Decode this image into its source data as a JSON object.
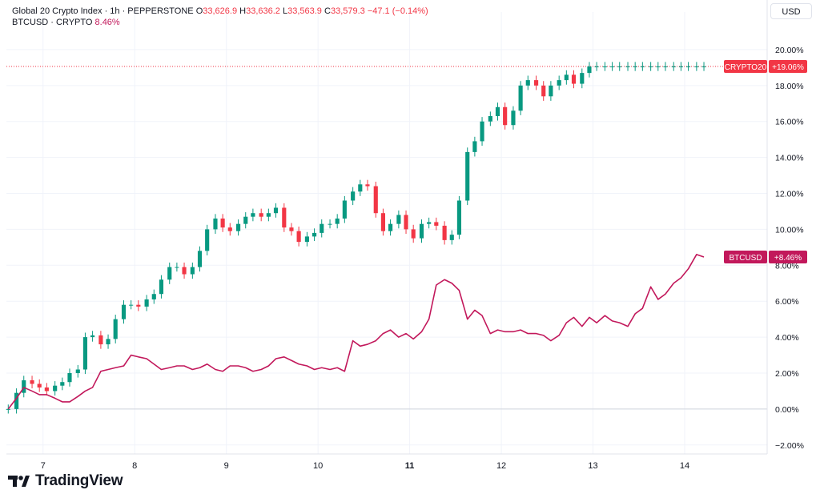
{
  "legend": {
    "line1": {
      "symbol": "Global 20 Crypto Index · 1h · PEPPERSTONE",
      "o_label": "O",
      "o": "33,626.9",
      "h_label": "H",
      "h": "33,636.2",
      "l_label": "L",
      "l": "33,563.9",
      "c_label": "C",
      "c": "33,579.3",
      "change": "−47.1 (−0.14%)"
    },
    "line2": {
      "symbol": "BTCUSD · CRYPTO",
      "value": "8.46%"
    }
  },
  "currency_button": "USD",
  "branding": "TradingView",
  "colors": {
    "up": "#089981",
    "down": "#f23645",
    "btc_line": "#c2185b",
    "grid": "#f0f3fa",
    "zero_line": "#d1d4dc",
    "axis_text": "#131722"
  },
  "chart_data": {
    "type": "line",
    "title": "",
    "y_unit": "%",
    "ylim": [
      -2.5,
      21.2
    ],
    "y_ticks": [
      "−2.00%",
      "0.00%",
      "2.00%",
      "4.00%",
      "6.00%",
      "8.00%",
      "10.00%",
      "12.00%",
      "14.00%",
      "16.00%",
      "18.00%",
      "20.00%"
    ],
    "y_tick_values": [
      -2,
      0,
      2,
      4,
      6,
      8,
      10,
      12,
      14,
      16,
      18,
      20
    ],
    "x_ticks": [
      "7",
      "8",
      "9",
      "10",
      "11",
      "12",
      "13",
      "14"
    ],
    "x_tick_values": [
      7,
      8,
      9,
      10,
      11,
      12,
      13,
      14
    ],
    "x_tick_bold": "11",
    "xlim": [
      6.6,
      14.9
    ],
    "grid": true,
    "series": [
      {
        "name": "CRYPTO20",
        "style": "candlestick",
        "label": "CRYPTO20",
        "last_value_label": "+19.06%",
        "last_value": 19.06,
        "x": [
          6.62,
          6.71,
          6.79,
          6.88,
          6.96,
          7.04,
          7.13,
          7.21,
          7.29,
          7.38,
          7.46,
          7.54,
          7.63,
          7.71,
          7.79,
          7.88,
          7.96,
          8.04,
          8.13,
          8.21,
          8.29,
          8.38,
          8.46,
          8.54,
          8.63,
          8.71,
          8.79,
          8.88,
          8.96,
          9.04,
          9.13,
          9.21,
          9.29,
          9.38,
          9.46,
          9.54,
          9.63,
          9.71,
          9.79,
          9.88,
          9.96,
          10.04,
          10.13,
          10.21,
          10.29,
          10.38,
          10.46,
          10.54,
          10.63,
          10.71,
          10.79,
          10.88,
          10.96,
          11.04,
          11.13,
          11.21,
          11.29,
          11.38,
          11.46,
          11.54,
          11.63,
          11.71,
          11.79,
          11.88,
          11.96,
          12.04,
          12.13,
          12.21,
          12.29,
          12.38,
          12.46,
          12.54,
          12.63,
          12.71,
          12.79,
          12.88,
          12.96,
          13.04,
          13.13,
          13.21,
          13.29,
          13.38,
          13.46,
          13.54,
          13.63,
          13.71,
          13.79,
          13.88,
          13.96,
          14.04,
          14.13,
          14.21
        ],
        "close": [
          0.0,
          0.9,
          1.6,
          1.4,
          1.2,
          1.0,
          1.3,
          1.5,
          2.0,
          2.2,
          4.0,
          4.1,
          3.6,
          3.9,
          5.0,
          5.8,
          5.8,
          5.7,
          6.1,
          6.4,
          7.2,
          7.9,
          7.9,
          7.5,
          7.9,
          8.8,
          10.0,
          10.6,
          10.1,
          9.9,
          10.3,
          10.7,
          10.9,
          10.7,
          10.9,
          11.2,
          10.1,
          9.9,
          9.3,
          9.6,
          9.8,
          10.3,
          10.3,
          10.6,
          11.6,
          12.1,
          12.5,
          12.4,
          10.9,
          9.9,
          10.3,
          10.8,
          10.0,
          9.5,
          10.3,
          10.4,
          10.2,
          9.4,
          9.7,
          11.6,
          14.3,
          14.9,
          16.0,
          16.3,
          16.8,
          15.8,
          16.6,
          18.0,
          18.3,
          18.0,
          17.4,
          18.0,
          18.3,
          18.6,
          18.1,
          18.7,
          19.06,
          19.06,
          19.06,
          19.06,
          19.06,
          19.06,
          19.06,
          19.06,
          19.06,
          19.06,
          19.06,
          19.06,
          19.06,
          19.06,
          19.06,
          19.06
        ]
      },
      {
        "name": "BTCUSD",
        "style": "line",
        "label": "BTCUSD",
        "last_value_label": "+8.46%",
        "last_value": 8.46,
        "x": [
          6.62,
          6.71,
          6.79,
          6.88,
          6.96,
          7.04,
          7.13,
          7.21,
          7.29,
          7.38,
          7.46,
          7.54,
          7.63,
          7.71,
          7.79,
          7.88,
          7.96,
          8.04,
          8.13,
          8.21,
          8.29,
          8.38,
          8.46,
          8.54,
          8.63,
          8.71,
          8.79,
          8.88,
          8.96,
          9.04,
          9.13,
          9.21,
          9.29,
          9.38,
          9.46,
          9.54,
          9.63,
          9.71,
          9.79,
          9.88,
          9.96,
          10.04,
          10.13,
          10.21,
          10.29,
          10.38,
          10.46,
          10.54,
          10.63,
          10.71,
          10.79,
          10.88,
          10.96,
          11.04,
          11.13,
          11.21,
          11.29,
          11.38,
          11.46,
          11.54,
          11.63,
          11.71,
          11.79,
          11.88,
          11.96,
          12.04,
          12.13,
          12.21,
          12.29,
          12.38,
          12.46,
          12.54,
          12.63,
          12.71,
          12.79,
          12.88,
          12.96,
          13.04,
          13.13,
          13.21,
          13.29,
          13.38,
          13.46,
          13.54,
          13.63,
          13.71,
          13.79,
          13.88,
          13.96,
          14.04,
          14.13,
          14.21
        ],
        "values": [
          0.0,
          0.6,
          1.2,
          1.0,
          0.8,
          0.8,
          0.6,
          0.4,
          0.4,
          0.7,
          1.0,
          1.2,
          2.1,
          2.2,
          2.3,
          2.4,
          3.0,
          2.9,
          2.8,
          2.5,
          2.2,
          2.3,
          2.4,
          2.4,
          2.2,
          2.3,
          2.5,
          2.2,
          2.1,
          2.4,
          2.4,
          2.3,
          2.1,
          2.2,
          2.4,
          2.8,
          2.9,
          2.7,
          2.5,
          2.4,
          2.2,
          2.3,
          2.2,
          2.3,
          2.1,
          3.8,
          3.5,
          3.6,
          3.8,
          4.2,
          4.4,
          4.0,
          4.2,
          3.9,
          4.3,
          5.0,
          6.9,
          7.2,
          7.0,
          6.6,
          5.0,
          5.5,
          5.2,
          4.2,
          4.4,
          4.3,
          4.3,
          4.4,
          4.2,
          4.2,
          4.1,
          3.8,
          4.1,
          4.8,
          5.1,
          4.6,
          5.1,
          4.8,
          5.2,
          4.9,
          4.8,
          4.6,
          5.3,
          5.6,
          6.8,
          6.1,
          6.4,
          7.0,
          7.3,
          7.8,
          8.6,
          8.46
        ]
      }
    ],
    "reference_line": 19.06
  }
}
